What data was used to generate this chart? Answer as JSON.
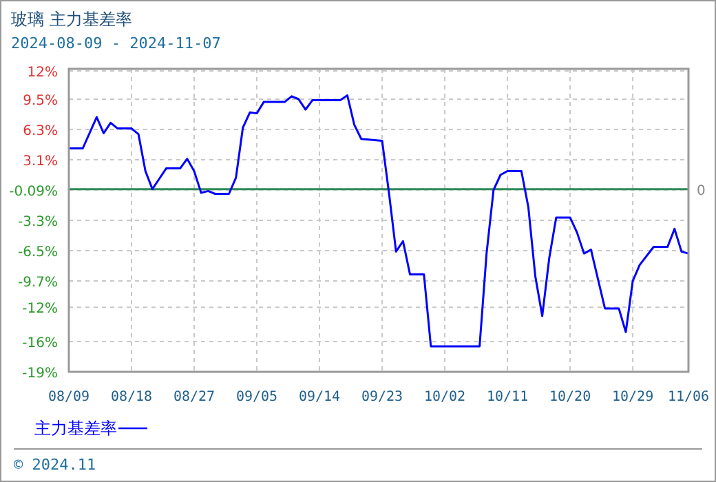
{
  "chart_data": {
    "type": "line",
    "title": "玻璃 主力基差率",
    "subtitle": "2024-08-09 - 2024-11-07",
    "x": [
      "2024-08-09",
      "2024-08-11",
      "2024-08-13",
      "2024-08-14",
      "2024-08-15",
      "2024-08-16",
      "2024-08-18",
      "2024-08-19",
      "2024-08-20",
      "2024-08-21",
      "2024-08-22",
      "2024-08-23",
      "2024-08-25",
      "2024-08-26",
      "2024-08-27",
      "2024-08-28",
      "2024-08-29",
      "2024-08-30",
      "2024-09-01",
      "2024-09-02",
      "2024-09-03",
      "2024-09-04",
      "2024-09-05",
      "2024-09-06",
      "2024-09-09",
      "2024-09-10",
      "2024-09-11",
      "2024-09-12",
      "2024-09-13",
      "2024-09-17",
      "2024-09-18",
      "2024-09-19",
      "2024-09-20",
      "2024-09-23",
      "2024-09-24",
      "2024-09-25",
      "2024-09-26",
      "2024-09-27",
      "2024-09-29",
      "2024-09-30",
      "2024-10-07",
      "2024-10-08",
      "2024-10-09",
      "2024-10-10",
      "2024-10-11",
      "2024-10-13",
      "2024-10-14",
      "2024-10-15",
      "2024-10-16",
      "2024-10-17",
      "2024-10-18",
      "2024-10-20",
      "2024-10-21",
      "2024-10-22",
      "2024-10-23",
      "2024-10-25",
      "2024-10-27",
      "2024-10-28",
      "2024-10-29",
      "2024-10-30",
      "2024-11-01",
      "2024-11-03",
      "2024-11-04",
      "2024-11-05",
      "2024-11-06"
    ],
    "series": [
      {
        "name": "主力基差率",
        "color": "#0000ff",
        "values": [
          4.3,
          4.3,
          7.6,
          5.9,
          7.0,
          6.4,
          6.4,
          5.8,
          1.9,
          0.0,
          1.1,
          2.2,
          2.2,
          3.2,
          1.9,
          -0.4,
          -0.2,
          -0.5,
          -0.5,
          1.2,
          6.5,
          8.1,
          8.0,
          9.2,
          9.2,
          9.8,
          9.5,
          8.4,
          9.4,
          9.4,
          9.9,
          6.8,
          5.3,
          5.1,
          -0.5,
          -6.6,
          -5.5,
          -9.0,
          -9.0,
          -16.6,
          -16.6,
          -6.8,
          -0.1,
          1.5,
          1.9,
          1.9,
          -1.9,
          -9.2,
          -13.4,
          -7.3,
          -3.0,
          -3.0,
          -4.6,
          -6.8,
          -6.4,
          -12.6,
          -12.6,
          -15.1,
          -9.7,
          -8.0,
          -6.1,
          -6.1,
          -4.2,
          -6.6,
          -6.8
        ]
      }
    ],
    "xlim": [
      "2024-08-09",
      "2024-11-06"
    ],
    "xticks": [
      {
        "value": "2024-08-09",
        "label": "08/09"
      },
      {
        "value": "2024-08-18",
        "label": "08/18"
      },
      {
        "value": "2024-08-27",
        "label": "08/27"
      },
      {
        "value": "2024-09-05",
        "label": "09/05"
      },
      {
        "value": "2024-09-14",
        "label": "09/14"
      },
      {
        "value": "2024-09-23",
        "label": "09/23"
      },
      {
        "value": "2024-10-02",
        "label": "10/02"
      },
      {
        "value": "2024-10-11",
        "label": "10/11"
      },
      {
        "value": "2024-10-20",
        "label": "10/20"
      },
      {
        "value": "2024-10-29",
        "label": "10/29"
      },
      {
        "value": "2024-11-06",
        "label": "11/06"
      }
    ],
    "ylim": [
      -19.3,
      12.7
    ],
    "yticks": [
      {
        "value": 12.49,
        "label": "12%"
      },
      {
        "value": 9.5,
        "label": "9.5%"
      },
      {
        "value": 6.3,
        "label": "6.3%"
      },
      {
        "value": 3.1,
        "label": "3.1%"
      },
      {
        "value": -0.09,
        "label": "-0.09%"
      },
      {
        "value": -3.3,
        "label": "-3.3%"
      },
      {
        "value": -6.5,
        "label": "-6.5%"
      },
      {
        "value": -9.7,
        "label": "-9.7%"
      },
      {
        "value": -12.49,
        "label": "-12%"
      },
      {
        "value": -16.1,
        "label": "-16%"
      },
      {
        "value": -19.3,
        "label": "-19%"
      }
    ],
    "grid": true,
    "legend": "bottom",
    "marker": "none",
    "line_style": "solid",
    "ref_lines": [
      {
        "axis": "y",
        "value": 0,
        "label": "0",
        "color": "#2e8b57"
      }
    ],
    "annotations": [
      "© 2024.11"
    ]
  }
}
